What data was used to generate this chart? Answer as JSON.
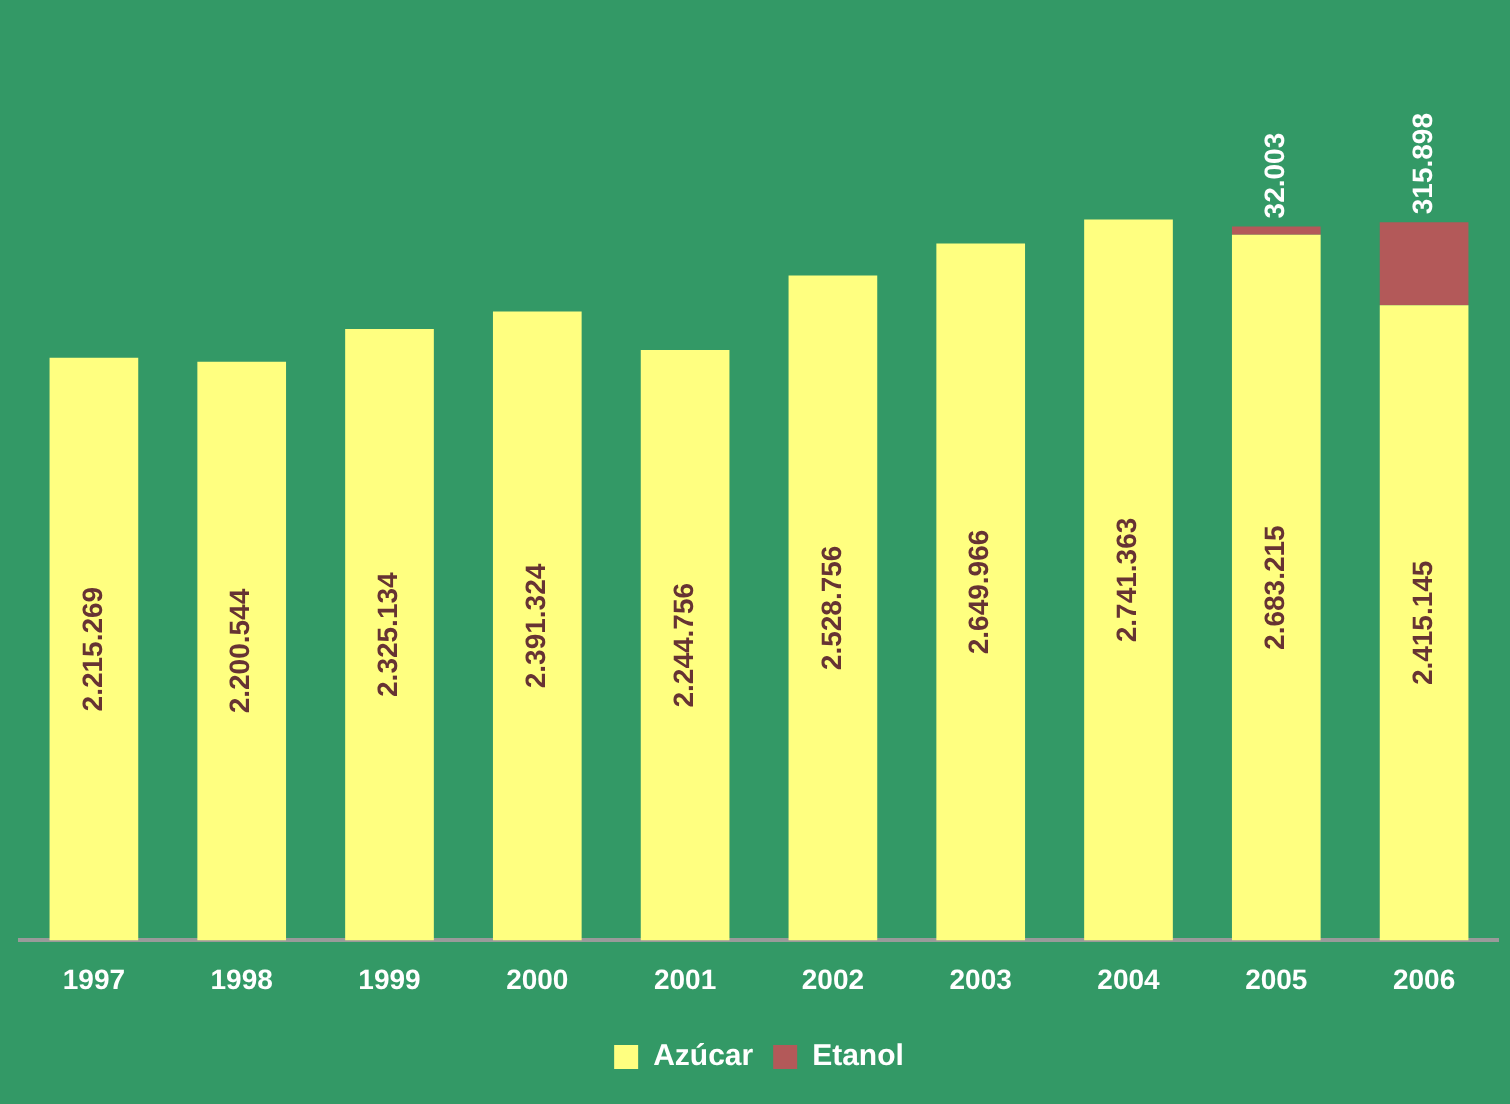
{
  "chart_data": {
    "type": "bar",
    "stacked": true,
    "categories": [
      "1997",
      "1998",
      "1999",
      "2000",
      "2001",
      "2002",
      "2003",
      "2004",
      "2005",
      "2006"
    ],
    "series": [
      {
        "name": "Azúcar",
        "color": "#ffff80",
        "values": [
          2215269,
          2200544,
          2325134,
          2391324,
          2244756,
          2528756,
          2649966,
          2741363,
          2683215,
          2415145
        ],
        "value_labels": [
          "2.215.269",
          "2.200.544",
          "2.325.134",
          "2.391.324",
          "2.244.756",
          "2.528.756",
          "2.649.966",
          "2.741.363",
          "2.683.215",
          "2.415.145"
        ]
      },
      {
        "name": "Etanol",
        "color": "#b35959",
        "values": [
          null,
          null,
          null,
          null,
          null,
          null,
          null,
          null,
          32003,
          315898
        ],
        "value_labels": [
          null,
          null,
          null,
          null,
          null,
          null,
          null,
          null,
          "32.003",
          "315.898"
        ]
      }
    ],
    "grid": false,
    "legend": "bottom"
  }
}
